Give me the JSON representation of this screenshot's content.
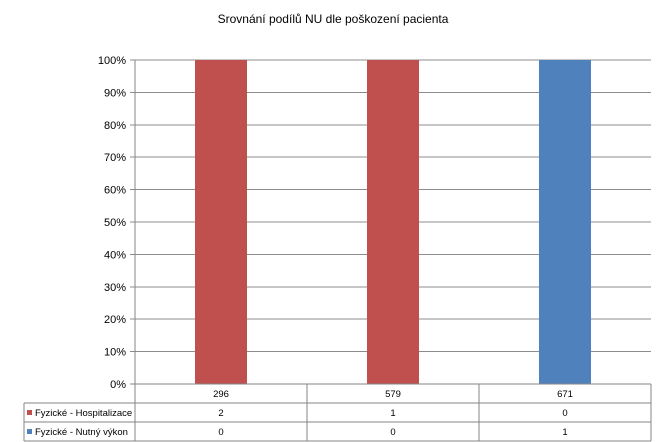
{
  "chart_data": {
    "type": "bar",
    "stacked": "percent",
    "title": "Srovnání podílů NU  dle poškození pacienta",
    "categories": [
      "296",
      "579",
      "671"
    ],
    "series": [
      {
        "name": "Fyzické - Hospitalizace",
        "values": [
          2,
          1,
          0
        ],
        "color": "#C0504D"
      },
      {
        "name": "Fyzické - Nutný výkon",
        "values": [
          0,
          0,
          1
        ],
        "color": "#4F81BD"
      }
    ],
    "ylim": [
      0,
      100
    ],
    "yticks": [
      "0%",
      "10%",
      "20%",
      "30%",
      "40%",
      "50%",
      "60%",
      "70%",
      "80%",
      "90%",
      "100%"
    ],
    "grid": true,
    "legend": "data-table"
  }
}
